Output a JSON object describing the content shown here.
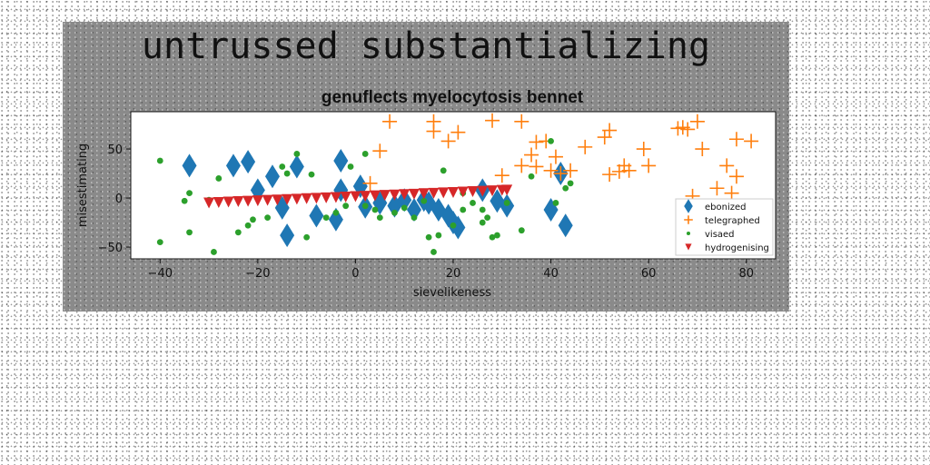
{
  "figure_title": "untrussed substantializing",
  "chart_data": {
    "type": "scatter",
    "title": "genuflects myelocytosis bennet",
    "xlabel": "sievelikeness",
    "ylabel": "misestimating",
    "xlim": [
      -46,
      86
    ],
    "ylim": [
      -62,
      88
    ],
    "xticks": [
      -40,
      -20,
      0,
      20,
      40,
      60,
      80
    ],
    "yticks": [
      -50,
      0,
      50
    ],
    "grid": false,
    "legend_position": "lower-right",
    "series": [
      {
        "name": "ebonized",
        "marker": "diamond",
        "color": "#1f77b4",
        "points": [
          [
            -34,
            33
          ],
          [
            -25,
            33
          ],
          [
            -22,
            37
          ],
          [
            -17,
            22
          ],
          [
            -14,
            -38
          ],
          [
            -12,
            32
          ],
          [
            -3,
            38
          ],
          [
            1,
            12
          ],
          [
            -4,
            -22
          ],
          [
            -8,
            -18
          ],
          [
            2,
            -9
          ],
          [
            5,
            -5
          ],
          [
            8,
            -8
          ],
          [
            10,
            -2
          ],
          [
            12,
            -12
          ],
          [
            14,
            -2
          ],
          [
            15,
            -5
          ],
          [
            17,
            -12
          ],
          [
            19,
            -18
          ],
          [
            20,
            -25
          ],
          [
            21,
            -30
          ],
          [
            26,
            8
          ],
          [
            29,
            -3
          ],
          [
            31,
            -8
          ],
          [
            40,
            -12
          ],
          [
            43,
            -28
          ],
          [
            42,
            25
          ],
          [
            -20,
            8
          ],
          [
            -3,
            8
          ],
          [
            -15,
            -10
          ]
        ]
      },
      {
        "name": "telegraphed",
        "marker": "plus",
        "color": "#ff7f0e",
        "points": [
          [
            7,
            78
          ],
          [
            16,
            78
          ],
          [
            16,
            68
          ],
          [
            19,
            58
          ],
          [
            21,
            67
          ],
          [
            28,
            79
          ],
          [
            34,
            78
          ],
          [
            30,
            23
          ],
          [
            34,
            33
          ],
          [
            37,
            32
          ],
          [
            36,
            44
          ],
          [
            37,
            57
          ],
          [
            40,
            28
          ],
          [
            41,
            42
          ],
          [
            42,
            25
          ],
          [
            44,
            28
          ],
          [
            47,
            52
          ],
          [
            51,
            62
          ],
          [
            52,
            69
          ],
          [
            52,
            24
          ],
          [
            54,
            27
          ],
          [
            55,
            33
          ],
          [
            59,
            50
          ],
          [
            60,
            33
          ],
          [
            66,
            71
          ],
          [
            67,
            72
          ],
          [
            68,
            70
          ],
          [
            70,
            78
          ],
          [
            71,
            50
          ],
          [
            74,
            10
          ],
          [
            76,
            33
          ],
          [
            78,
            22
          ],
          [
            77,
            5
          ],
          [
            78,
            60
          ],
          [
            81,
            58
          ],
          [
            56,
            28
          ],
          [
            3,
            15
          ],
          [
            5,
            48
          ],
          [
            69,
            2
          ],
          [
            39,
            58
          ]
        ]
      },
      {
        "name": "visaed",
        "marker": "circle",
        "color": "#2ca02c",
        "points": [
          [
            -40,
            -45
          ],
          [
            -40,
            38
          ],
          [
            -34,
            -35
          ],
          [
            -34,
            5
          ],
          [
            -29,
            -55
          ],
          [
            -30,
            -2
          ],
          [
            -28,
            20
          ],
          [
            -24,
            -35
          ],
          [
            -22,
            -28
          ],
          [
            -21,
            -22
          ],
          [
            -18,
            -20
          ],
          [
            -15,
            32
          ],
          [
            -14,
            25
          ],
          [
            -12,
            45
          ],
          [
            -10,
            -40
          ],
          [
            -9,
            24
          ],
          [
            -6,
            -20
          ],
          [
            -4,
            -15
          ],
          [
            -2,
            -8
          ],
          [
            -1,
            32
          ],
          [
            2,
            -8
          ],
          [
            2,
            45
          ],
          [
            4,
            -12
          ],
          [
            5,
            -20
          ],
          [
            8,
            -15
          ],
          [
            10,
            -10
          ],
          [
            12,
            -20
          ],
          [
            15,
            -40
          ],
          [
            16,
            -55
          ],
          [
            17,
            -38
          ],
          [
            18,
            28
          ],
          [
            20,
            -28
          ],
          [
            22,
            -12
          ],
          [
            24,
            -5
          ],
          [
            26,
            -12
          ],
          [
            27,
            -20
          ],
          [
            28,
            -40
          ],
          [
            29,
            -38
          ],
          [
            31,
            -5
          ],
          [
            34,
            -33
          ],
          [
            36,
            22
          ],
          [
            41,
            -5
          ],
          [
            43,
            10
          ],
          [
            44,
            15
          ],
          [
            -35,
            -3
          ],
          [
            14,
            -3
          ],
          [
            40,
            58
          ],
          [
            -8,
            2
          ],
          [
            22,
            5
          ],
          [
            26,
            -25
          ]
        ]
      },
      {
        "name": "hydrogenising",
        "marker": "triangle-down",
        "color": "#d62728",
        "x_range": [
          -30,
          31
        ],
        "y_range": [
          -5,
          8
        ],
        "points": [
          [
            -30,
            -5
          ],
          [
            -28,
            -4.6
          ],
          [
            -26,
            -4.1
          ],
          [
            -24,
            -3.7
          ],
          [
            -22,
            -3.3
          ],
          [
            -20,
            -2.9
          ],
          [
            -18,
            -2.4
          ],
          [
            -16,
            -2
          ],
          [
            -14,
            -1.6
          ],
          [
            -12,
            -1.2
          ],
          [
            -10,
            -0.7
          ],
          [
            -8,
            -0.3
          ],
          [
            -6,
            0.1
          ],
          [
            -4,
            0.5
          ],
          [
            -2,
            1
          ],
          [
            0,
            1.4
          ],
          [
            2,
            1.8
          ],
          [
            4,
            2.2
          ],
          [
            6,
            2.7
          ],
          [
            8,
            3.1
          ],
          [
            10,
            3.5
          ],
          [
            12,
            3.9
          ],
          [
            14,
            4.4
          ],
          [
            16,
            4.8
          ],
          [
            18,
            5.2
          ],
          [
            20,
            5.6
          ],
          [
            22,
            6.1
          ],
          [
            24,
            6.5
          ],
          [
            26,
            6.9
          ],
          [
            28,
            7.3
          ],
          [
            30,
            7.8
          ],
          [
            31,
            8
          ]
        ]
      }
    ]
  }
}
